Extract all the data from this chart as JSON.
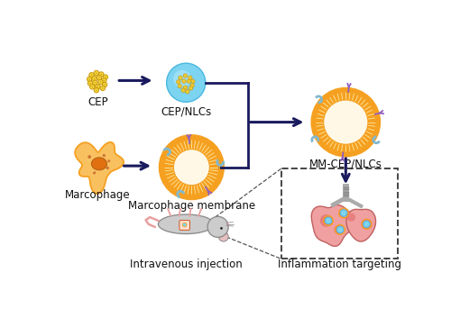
{
  "bg_color": "#ffffff",
  "arrow_color": "#1a1a5e",
  "cep_color_outer": "#c8960a",
  "cep_color_inner": "#f5d840",
  "nlcs_bg": "#7dd4f0",
  "nlcs_highlight": "#b8eafc",
  "membrane_orange": "#f5a020",
  "membrane_cream": "#fff8e7",
  "macrophage_outer": "#f5a020",
  "macrophage_inner_light": "#f9c060",
  "macrophage_nucleus": "#e07010",
  "lung_pink": "#f0a0a0",
  "lung_dark": "#e06060",
  "lung_deeper": "#c04040",
  "trachea_color": "#aaaaaa",
  "mouse_body": "#cccccc",
  "mouse_outline": "#888888",
  "mouse_pink": "#e8a0a0",
  "receptor_purple": "#9060c0",
  "receptor_teal": "#80b8d0",
  "labels": {
    "cep": "CEP",
    "cep_nlcs": "CEP/NLCs",
    "macrophage": "Marcophage",
    "mm": "Marcophage membrane",
    "mm_cep": "MM-CEP/NLCs",
    "injection": "Intravenous injection",
    "targeting": "Inflammation targeting"
  },
  "lfs": 8.5
}
